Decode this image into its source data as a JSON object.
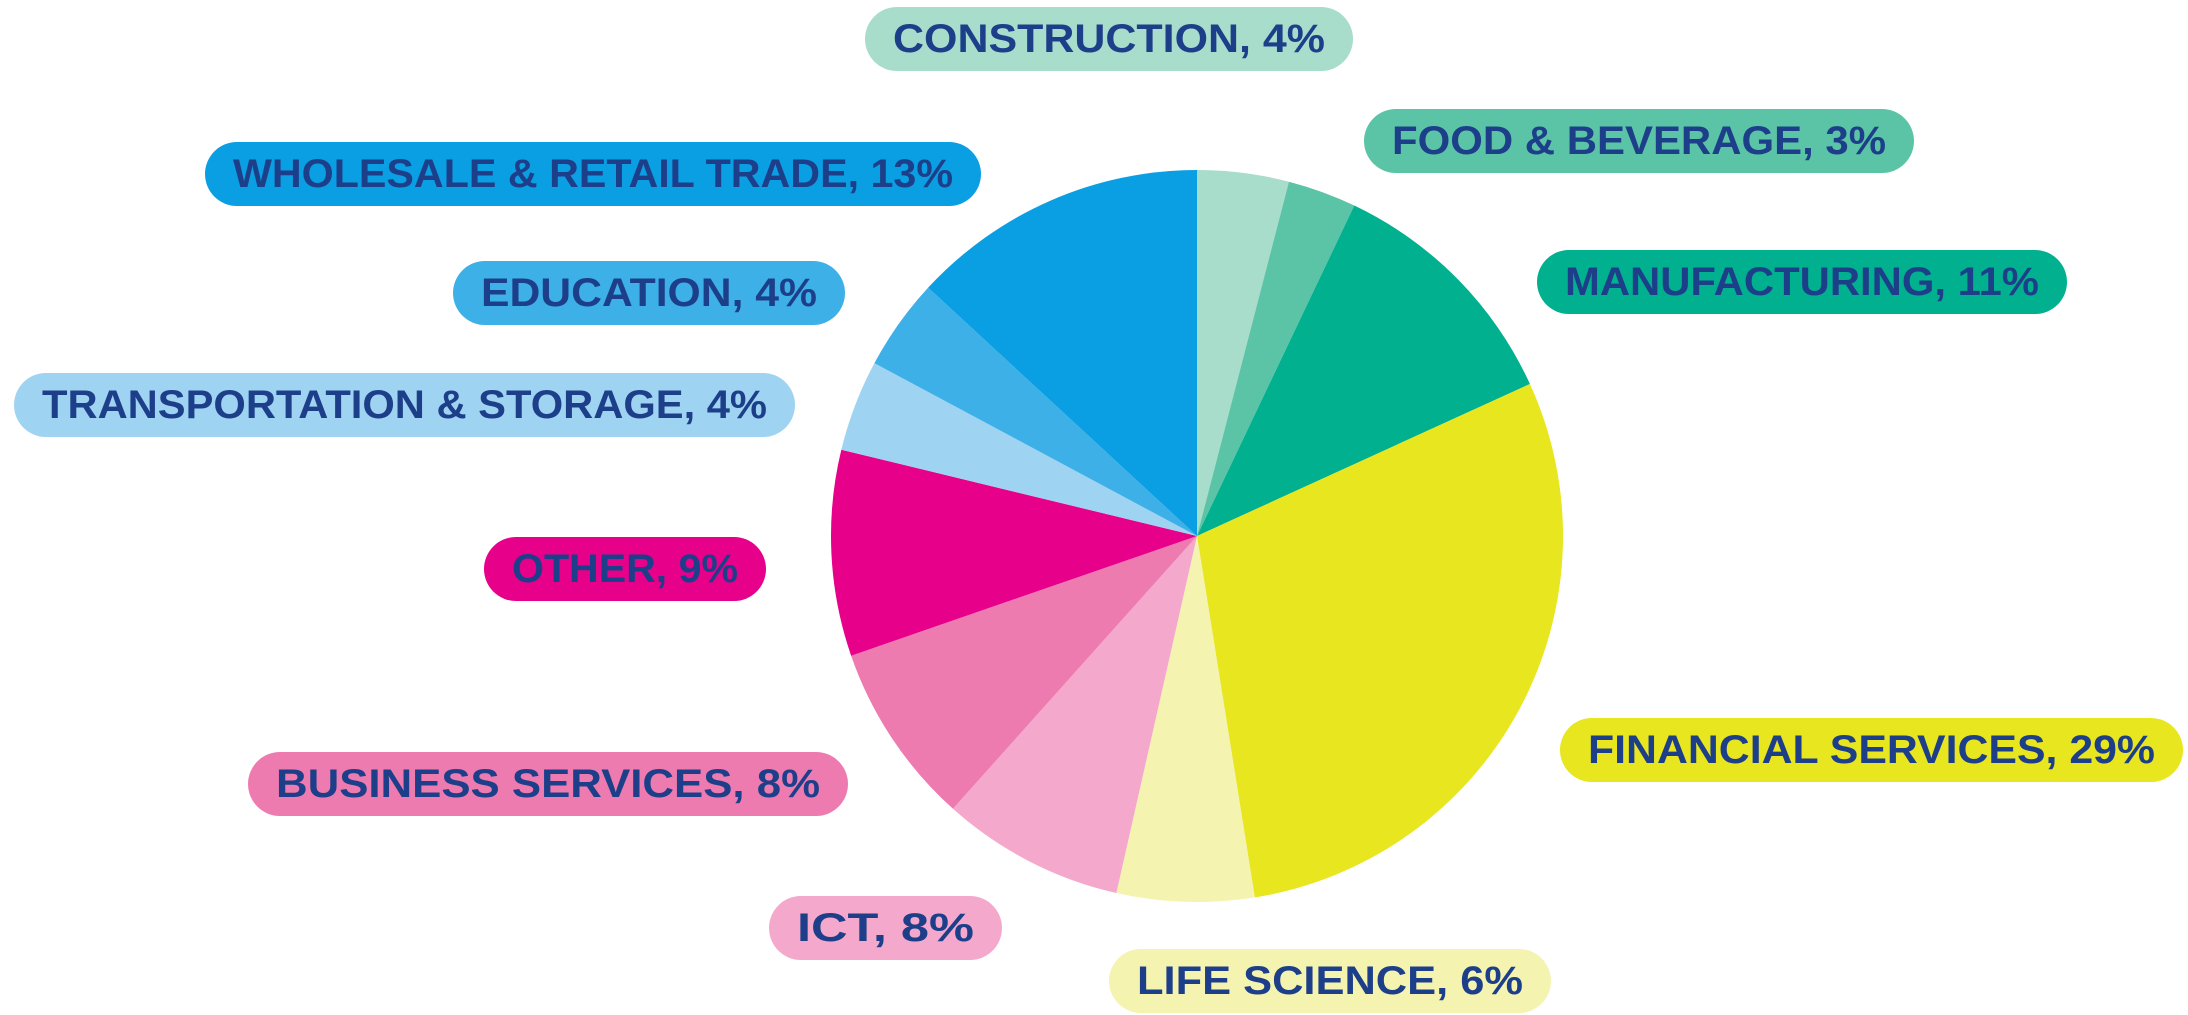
{
  "chart_data": {
    "type": "pie",
    "values": [
      4,
      3,
      11,
      29,
      6,
      8,
      8,
      9,
      4,
      4,
      13
    ],
    "value_labels": [
      "CONSTRUCTION, 4%",
      "FOOD & BEVERAGE, 3%",
      "MANUFACTURING, 11%",
      "FINANCIAL SERVICES, 29%",
      "LIFE SCIENCE, 6%",
      "ICT, 8%",
      "BUSINESS SERVICES, 8%",
      "OTHER, 9%",
      "TRANSPORTATION & STORAGE, 4%",
      "EDUCATION, 4%",
      "WHOLESALE & RETAIL TRADE, 13%"
    ],
    "colors": [
      "#a8dccb",
      "#5cc4a6",
      "#00b08f",
      "#e8e61f",
      "#f5f3b0",
      "#f4a8cc",
      "#ee7bb0",
      "#e6008a",
      "#9fd3f2",
      "#3db0e8",
      "#0a9ee2"
    ]
  }
}
